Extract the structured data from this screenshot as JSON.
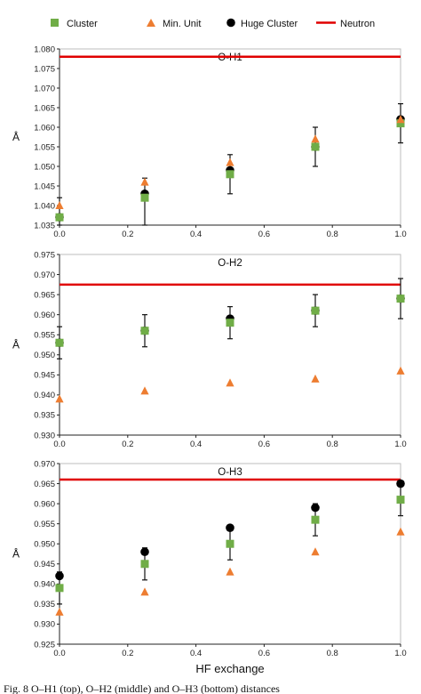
{
  "legend": [
    {
      "key": "cluster",
      "label": "Cluster",
      "marker": "square",
      "color": "#70ad47"
    },
    {
      "key": "min_unit",
      "label": "Min. Unit",
      "marker": "triangle",
      "color": "#ed7d31"
    },
    {
      "key": "huge_cluster",
      "label": "Huge Cluster",
      "marker": "circle",
      "color": "#000000"
    },
    {
      "key": "neutron",
      "label": "Neutron",
      "marker": "line",
      "color": "#e00000"
    }
  ],
  "xlabel": "HF exchange",
  "caption": "Fig. 8  O–H1 (top), O–H2 (middle) and O–H3 (bottom) distances",
  "chart_data": [
    {
      "type": "scatter",
      "title": "O-H1",
      "ylabel": "Å",
      "xlim": [
        0,
        1
      ],
      "ylim": [
        1.035,
        1.08
      ],
      "xticks": [
        "0.0",
        "0.2",
        "0.4",
        "0.6",
        "0.8",
        "1.0"
      ],
      "yticks": [
        "1.035",
        "1.040",
        "1.045",
        "1.050",
        "1.055",
        "1.060",
        "1.065",
        "1.070",
        "1.075",
        "1.080"
      ],
      "x": [
        0,
        0.25,
        0.5,
        0.75,
        1.0
      ],
      "series": [
        {
          "name": "Cluster",
          "key": "cluster",
          "values": [
            1.037,
            1.042,
            1.048,
            1.055,
            1.061
          ],
          "err_low": [
            1.035,
            1.035,
            1.043,
            1.05,
            1.056
          ],
          "err_high": [
            1.042,
            1.047,
            1.053,
            1.06,
            1.066
          ]
        },
        {
          "name": "Min. Unit",
          "key": "min_unit",
          "values": [
            1.04,
            1.046,
            1.051,
            1.057,
            1.062
          ]
        },
        {
          "name": "Huge Cluster",
          "key": "huge_cluster",
          "values": [
            1.037,
            1.043,
            1.049,
            1.055,
            1.062
          ]
        }
      ],
      "hline": {
        "name": "Neutron",
        "value": 1.078
      }
    },
    {
      "type": "scatter",
      "title": "O-H2",
      "ylabel": "Å",
      "xlim": [
        0,
        1
      ],
      "ylim": [
        0.93,
        0.975
      ],
      "xticks": [
        "0.0",
        "0.2",
        "0.4",
        "0.6",
        "0.8",
        "1.0"
      ],
      "yticks": [
        "0.930",
        "0.935",
        "0.940",
        "0.945",
        "0.950",
        "0.955",
        "0.960",
        "0.965",
        "0.970",
        "0.975"
      ],
      "x": [
        0,
        0.25,
        0.5,
        0.75,
        1.0
      ],
      "series": [
        {
          "name": "Cluster",
          "key": "cluster",
          "values": [
            0.953,
            0.956,
            0.958,
            0.961,
            0.964
          ],
          "err_low": [
            0.949,
            0.952,
            0.954,
            0.957,
            0.959
          ],
          "err_high": [
            0.957,
            0.96,
            0.962,
            0.965,
            0.969
          ]
        },
        {
          "name": "Min. Unit",
          "key": "min_unit",
          "values": [
            0.939,
            0.941,
            0.943,
            0.944,
            0.946
          ]
        },
        {
          "name": "Huge Cluster",
          "key": "huge_cluster",
          "values": [
            0.953,
            0.956,
            0.959,
            0.961,
            0.964
          ]
        }
      ],
      "hline": {
        "name": "Neutron",
        "value": 0.9675
      }
    },
    {
      "type": "scatter",
      "title": "O-H3",
      "ylabel": "Å",
      "xlim": [
        0,
        1
      ],
      "ylim": [
        0.925,
        0.97
      ],
      "xticks": [
        "0.0",
        "0.2",
        "0.4",
        "0.6",
        "0.8",
        "1.0"
      ],
      "yticks": [
        "0.925",
        "0.930",
        "0.935",
        "0.940",
        "0.945",
        "0.950",
        "0.955",
        "0.960",
        "0.965",
        "0.970"
      ],
      "x": [
        0,
        0.25,
        0.5,
        0.75,
        1.0
      ],
      "series": [
        {
          "name": "Cluster",
          "key": "cluster",
          "values": [
            0.939,
            0.945,
            0.95,
            0.956,
            0.961
          ],
          "err_low": [
            0.935,
            0.941,
            0.946,
            0.952,
            0.957
          ],
          "err_high": [
            0.943,
            0.949,
            0.954,
            0.96,
            0.965
          ]
        },
        {
          "name": "Min. Unit",
          "key": "min_unit",
          "values": [
            0.933,
            0.938,
            0.943,
            0.948,
            0.953
          ]
        },
        {
          "name": "Huge Cluster",
          "key": "huge_cluster",
          "values": [
            0.942,
            0.948,
            0.954,
            0.959,
            0.965
          ]
        }
      ],
      "hline": {
        "name": "Neutron",
        "value": 0.966
      }
    }
  ]
}
